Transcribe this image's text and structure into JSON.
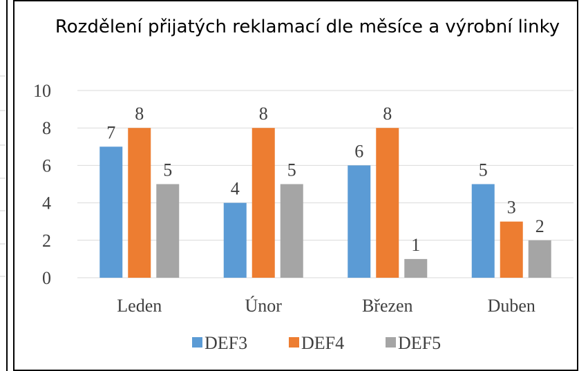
{
  "chart_data": {
    "type": "bar",
    "title": "Rozdělení přijatých reklamací dle měsíce a výrobní linky",
    "categories": [
      "Leden",
      "Únor",
      "Březen",
      "Duben"
    ],
    "series": [
      {
        "name": "DEF3",
        "color": "#5b9bd5",
        "values": [
          7,
          4,
          6,
          5
        ]
      },
      {
        "name": "DEF4",
        "color": "#ed7d31",
        "values": [
          8,
          8,
          8,
          3
        ]
      },
      {
        "name": "DEF5",
        "color": "#a5a5a5",
        "values": [
          5,
          5,
          1,
          2
        ]
      }
    ],
    "ylim": [
      0,
      10
    ],
    "yticks": [
      0,
      2,
      4,
      6,
      8,
      10
    ],
    "grid": true,
    "legend": "bottom"
  }
}
